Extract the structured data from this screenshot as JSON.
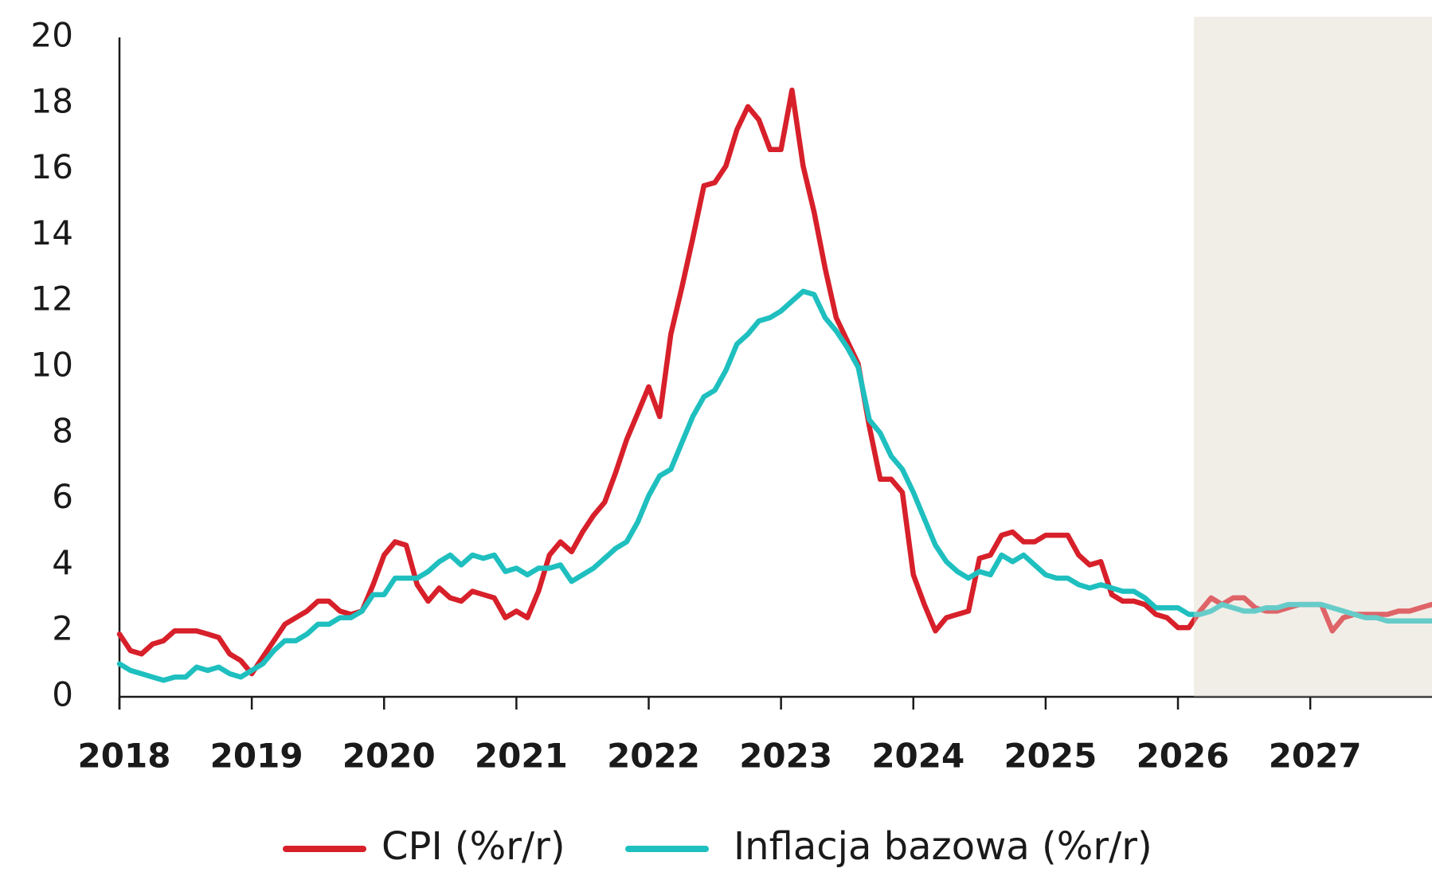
{
  "chart_data": {
    "type": "line",
    "x": [
      2018,
      2018.083,
      2018.167,
      2018.25,
      2018.333,
      2018.417,
      2018.5,
      2018.583,
      2018.667,
      2018.75,
      2018.833,
      2018.917,
      2019,
      2019.083,
      2019.167,
      2019.25,
      2019.333,
      2019.417,
      2019.5,
      2019.583,
      2019.667,
      2019.75,
      2019.833,
      2019.917,
      2020,
      2020.083,
      2020.167,
      2020.25,
      2020.333,
      2020.417,
      2020.5,
      2020.583,
      2020.667,
      2020.75,
      2020.833,
      2020.917,
      2021,
      2021.083,
      2021.167,
      2021.25,
      2021.333,
      2021.417,
      2021.5,
      2021.583,
      2021.667,
      2021.75,
      2021.833,
      2021.917,
      2022,
      2022.083,
      2022.167,
      2022.25,
      2022.333,
      2022.417,
      2022.5,
      2022.583,
      2022.667,
      2022.75,
      2022.833,
      2022.917,
      2023,
      2023.083,
      2023.167,
      2023.25,
      2023.333,
      2023.417,
      2023.5,
      2023.583,
      2023.667,
      2023.75,
      2023.833,
      2023.917,
      2024,
      2024.083,
      2024.167,
      2024.25,
      2024.333,
      2024.417,
      2024.5,
      2024.583,
      2024.667,
      2024.75,
      2024.833,
      2024.917,
      2025,
      2025.083,
      2025.167,
      2025.25,
      2025.333,
      2025.417,
      2025.5,
      2025.583,
      2025.667,
      2025.75,
      2025.833,
      2025.917,
      2026,
      2026.083,
      2026.167,
      2026.25,
      2026.333,
      2026.417,
      2026.5,
      2026.583,
      2026.667,
      2026.75,
      2026.833,
      2026.917,
      2027,
      2027.083,
      2027.167,
      2027.25,
      2027.333,
      2027.417,
      2027.5,
      2027.583,
      2027.667,
      2027.75,
      2027.833,
      2027.917
    ],
    "series": [
      {
        "name": "CPI (%r/r)",
        "color": "#d7202a",
        "values": [
          1.9,
          1.4,
          1.3,
          1.6,
          1.7,
          2.0,
          2.0,
          2.0,
          1.9,
          1.8,
          1.3,
          1.1,
          0.7,
          1.2,
          1.7,
          2.2,
          2.4,
          2.6,
          2.9,
          2.9,
          2.6,
          2.5,
          2.6,
          3.4,
          4.3,
          4.7,
          4.6,
          3.4,
          2.9,
          3.3,
          3.0,
          2.9,
          3.2,
          3.1,
          3.0,
          2.4,
          2.6,
          2.4,
          3.2,
          4.3,
          4.7,
          4.4,
          5.0,
          5.5,
          5.9,
          6.8,
          7.8,
          8.6,
          9.4,
          8.5,
          11.0,
          12.4,
          13.9,
          15.5,
          15.6,
          16.1,
          17.2,
          17.9,
          17.5,
          16.6,
          16.6,
          18.4,
          16.1,
          14.7,
          13.0,
          11.5,
          10.8,
          10.1,
          8.2,
          6.6,
          6.6,
          6.2,
          3.7,
          2.8,
          2.0,
          2.4,
          2.5,
          2.6,
          4.2,
          4.3,
          4.9,
          5.0,
          4.7,
          4.7,
          4.9,
          4.9,
          4.9,
          4.3,
          4.0,
          4.1,
          3.1,
          2.9,
          2.9,
          2.8,
          2.5,
          2.4,
          2.1,
          2.1,
          2.6,
          3.0,
          2.8,
          3.0,
          3.0,
          2.7,
          2.6,
          2.6,
          2.7,
          2.8,
          2.8,
          2.8,
          2.0,
          2.4,
          2.5,
          2.5,
          2.5,
          2.5,
          2.6,
          2.6,
          2.7,
          2.8
        ]
      },
      {
        "name": "Inflacja bazowa (%r/r)",
        "color": "#1fbfbf",
        "values": [
          1.0,
          0.8,
          0.7,
          0.6,
          0.5,
          0.6,
          0.6,
          0.9,
          0.8,
          0.9,
          0.7,
          0.6,
          0.8,
          1.0,
          1.4,
          1.7,
          1.7,
          1.9,
          2.2,
          2.2,
          2.4,
          2.4,
          2.6,
          3.1,
          3.1,
          3.6,
          3.6,
          3.6,
          3.8,
          4.1,
          4.3,
          4.0,
          4.3,
          4.2,
          4.3,
          3.8,
          3.9,
          3.7,
          3.9,
          3.9,
          4.0,
          3.5,
          3.7,
          3.9,
          4.2,
          4.5,
          4.7,
          5.3,
          6.1,
          6.7,
          6.9,
          7.7,
          8.5,
          9.1,
          9.3,
          9.9,
          10.7,
          11.0,
          11.4,
          11.5,
          11.7,
          12.0,
          12.3,
          12.2,
          11.5,
          11.1,
          10.6,
          10.0,
          8.4,
          8.0,
          7.3,
          6.9,
          6.2,
          5.4,
          4.6,
          4.1,
          3.8,
          3.6,
          3.8,
          3.7,
          4.3,
          4.1,
          4.3,
          4.0,
          3.7,
          3.6,
          3.6,
          3.4,
          3.3,
          3.4,
          3.3,
          3.2,
          3.2,
          3.0,
          2.7,
          2.7,
          2.7,
          2.5,
          2.5,
          2.6,
          2.8,
          2.7,
          2.6,
          2.6,
          2.7,
          2.7,
          2.8,
          2.8,
          2.8,
          2.8,
          2.7,
          2.6,
          2.5,
          2.4,
          2.4,
          2.3,
          2.3,
          2.3,
          2.3,
          2.3
        ]
      }
    ],
    "xlim": [
      2018,
      2027.92
    ],
    "xticks": [
      2018,
      2019,
      2020,
      2021,
      2022,
      2023,
      2024,
      2025,
      2026,
      2027
    ],
    "ylim": [
      0,
      20
    ],
    "yticks": [
      0,
      2,
      4,
      6,
      8,
      10,
      12,
      14,
      16,
      18,
      20
    ],
    "forecast_start": 2026.12,
    "grid": false,
    "legend": "bottom"
  }
}
